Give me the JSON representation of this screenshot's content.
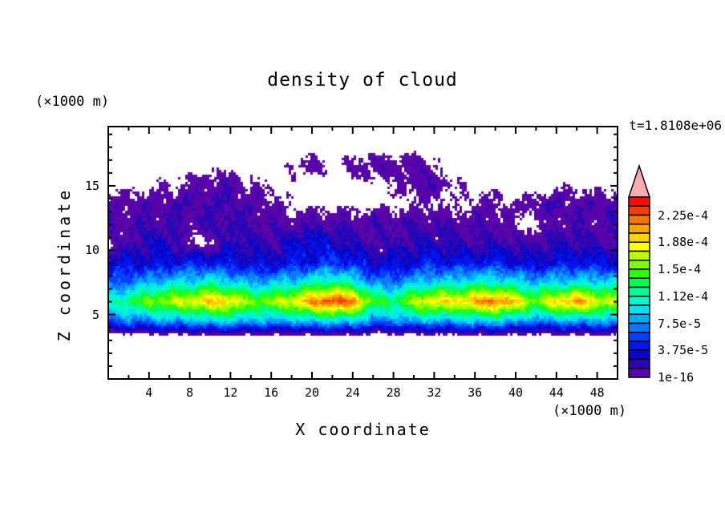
{
  "chart_data": {
    "type": "filled_contour",
    "title": "density of cloud",
    "time_label": "t=1.8108e+06",
    "x_axis": {
      "label": "X coordinate",
      "unit_label": "(×1000 m)",
      "range": [
        0,
        50
      ],
      "tick_labels": [
        4,
        8,
        12,
        16,
        20,
        24,
        28,
        32,
        36,
        40,
        44,
        48
      ],
      "minor_tick_step": 2
    },
    "y_axis": {
      "label": "Z coordinate",
      "unit_label": "(×1000 m)",
      "range": [
        0,
        19.6
      ],
      "tick_labels": [
        5,
        10,
        15
      ],
      "minor_tick_step": 1
    },
    "colorbar": {
      "segment_count": 20,
      "level_step": 1.25e-05,
      "labels": [
        "2.25e-4",
        "1.88e-4",
        "1.5e-4",
        "1.12e-4",
        "7.5e-5",
        "3.75e-5",
        "1e-16"
      ],
      "label_segments": [
        18,
        15,
        12,
        9,
        6,
        3,
        0
      ],
      "colors_bottom_to_top": [
        "#5804A8",
        "#2C06B4",
        "#0606C8",
        "#0414EE",
        "#0440FE",
        "#0C78F8",
        "#00AAFF",
        "#04DFF4",
        "#04F8D0",
        "#04FA94",
        "#08FC4C",
        "#30FE04",
        "#7CFE04",
        "#BCFE04",
        "#FCFE04",
        "#FCD404",
        "#FCA404",
        "#FC7404",
        "#FC3C04",
        "#F80C04"
      ],
      "overflow_color": "#F8ACB4",
      "background_color": "#FFFFFF"
    },
    "field": {
      "description": "cloud density on x-z grid, values in units of one colorbar level (1 level = 1.25e-5); 0 or less renders white",
      "x": [
        0,
        2,
        4,
        6,
        8,
        10,
        12,
        14,
        16,
        18,
        20,
        22,
        24,
        26,
        28,
        30,
        32,
        34,
        36,
        38,
        40,
        42,
        44,
        46,
        48,
        50
      ],
      "z": [
        0,
        1.5,
        3,
        4.5,
        6,
        7.5,
        9,
        10.5,
        12,
        13.5,
        15,
        16.5,
        18,
        19.5
      ],
      "grid": [
        [
          0,
          0,
          0,
          0,
          0,
          0,
          0,
          0,
          0,
          0,
          0,
          0,
          0,
          0,
          0,
          0,
          0,
          0,
          0,
          0,
          0,
          0,
          0,
          0,
          0,
          0
        ],
        [
          0,
          0,
          0,
          0,
          0,
          0,
          0,
          0,
          0,
          0,
          0,
          0,
          0,
          0,
          0,
          0,
          0,
          0,
          0,
          0,
          0,
          0,
          0,
          0,
          0,
          0
        ],
        [
          -2,
          -2,
          -2,
          -2,
          -2,
          -2,
          -2,
          -2,
          -2,
          -2,
          -2,
          -2,
          -2,
          -2,
          -2,
          -2,
          -2,
          -2,
          -2,
          -2,
          -2,
          -2,
          -2,
          -2,
          -2,
          -2
        ],
        [
          5,
          6,
          6,
          7,
          7,
          8,
          8,
          7,
          7,
          7,
          8,
          8,
          8,
          6,
          6,
          7,
          7,
          7,
          8,
          8,
          7,
          6,
          7,
          7,
          7,
          7
        ],
        [
          9,
          11,
          13,
          14,
          15,
          16.5,
          16,
          13,
          13.5,
          15,
          17.5,
          19.5,
          18,
          12,
          11,
          14,
          16,
          15.5,
          17,
          18.5,
          16,
          13,
          16,
          17.5,
          15,
          14
        ],
        [
          5,
          6,
          7,
          8,
          8,
          9,
          8,
          7,
          7,
          8,
          9,
          10,
          9,
          6,
          6,
          7,
          8,
          8,
          9,
          9,
          8,
          7,
          8,
          8,
          8,
          8
        ],
        [
          3,
          3.5,
          3,
          3.5,
          4,
          4,
          3.5,
          3,
          3,
          3.5,
          4,
          4.5,
          4,
          3,
          3,
          3.5,
          4,
          3.5,
          4,
          4,
          3.5,
          3,
          3.5,
          4,
          3.5,
          3.5
        ],
        [
          0.3,
          1.5,
          2.5,
          2.5,
          0.3,
          0.3,
          2.5,
          2,
          1.5,
          3,
          3.5,
          3,
          2,
          1.5,
          1.5,
          2,
          2.5,
          2,
          1.5,
          2,
          1.5,
          1.5,
          2,
          2,
          1.5,
          1.5
        ],
        [
          1.3,
          1.4,
          1.5,
          1.6,
          1.5,
          1.6,
          1.8,
          1.5,
          1.3,
          1.1,
          1.5,
          1.4,
          1.3,
          1.4,
          1.5,
          1.5,
          1.4,
          1.3,
          1.2,
          1.3,
          0.4,
          0.3,
          1.2,
          1.3,
          1.2,
          1.2
        ],
        [
          1.2,
          1.1,
          1.2,
          1.3,
          1.4,
          1.6,
          1.5,
          1.2,
          0.9,
          0.3,
          0.2,
          0.2,
          0.2,
          0.2,
          0.3,
          0.4,
          0.6,
          0.2,
          0.8,
          0.9,
          0.5,
          1.3,
          1.4,
          1.3,
          1.4,
          1.4
        ],
        [
          0.2,
          0.2,
          0.3,
          0.5,
          0.8,
          1.2,
          1.3,
          0.6,
          0.3,
          0.2,
          0,
          0,
          0,
          0.2,
          0.3,
          1.2,
          1.2,
          0.5,
          0.2,
          0.2,
          0,
          0,
          0.3,
          0.3,
          0.2,
          0.2
        ],
        [
          0,
          0,
          0,
          0,
          0,
          0.2,
          0.2,
          0,
          0,
          0.4,
          1.0,
          0.3,
          0.8,
          1.1,
          1.2,
          1.1,
          0.7,
          0,
          0,
          0,
          0,
          0,
          0,
          0,
          0,
          0
        ],
        [
          0,
          0,
          0,
          0,
          0,
          0,
          0,
          0,
          0,
          0,
          0,
          0,
          0,
          0,
          0,
          0,
          0,
          0,
          0,
          0,
          0,
          0,
          0,
          0,
          0,
          0
        ],
        [
          0,
          0,
          0,
          0,
          0,
          0,
          0,
          0,
          0,
          0,
          0,
          0,
          0,
          0,
          0,
          0,
          0,
          0,
          0,
          0,
          0,
          0,
          0,
          0,
          0,
          0
        ]
      ]
    }
  }
}
